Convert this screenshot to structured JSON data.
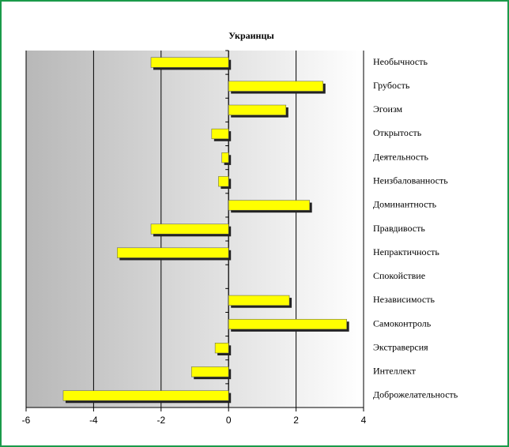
{
  "chart_data": {
    "type": "bar",
    "orientation": "horizontal",
    "title": "Украинцы",
    "categories": [
      "Необычность",
      "Грубость",
      "Эгоизм",
      "Открытость",
      "Деятельность",
      "Неизбалованность",
      "Доминантность",
      "Правдивость",
      "Непрактичность",
      "Спокойствие",
      "Независимость",
      "Самоконтроль",
      "Экстраверсия",
      "Интеллект",
      "Доброжелательность"
    ],
    "values": [
      -2.3,
      2.8,
      1.7,
      -0.5,
      -0.2,
      -0.3,
      2.4,
      -2.3,
      -3.3,
      0,
      1.8,
      3.5,
      -0.4,
      -1.1,
      -4.9
    ],
    "color": "#ffff00",
    "xlim": [
      -6,
      4
    ],
    "xticks": [
      -6,
      -4,
      -2,
      0,
      2,
      4
    ],
    "grid": true
  }
}
